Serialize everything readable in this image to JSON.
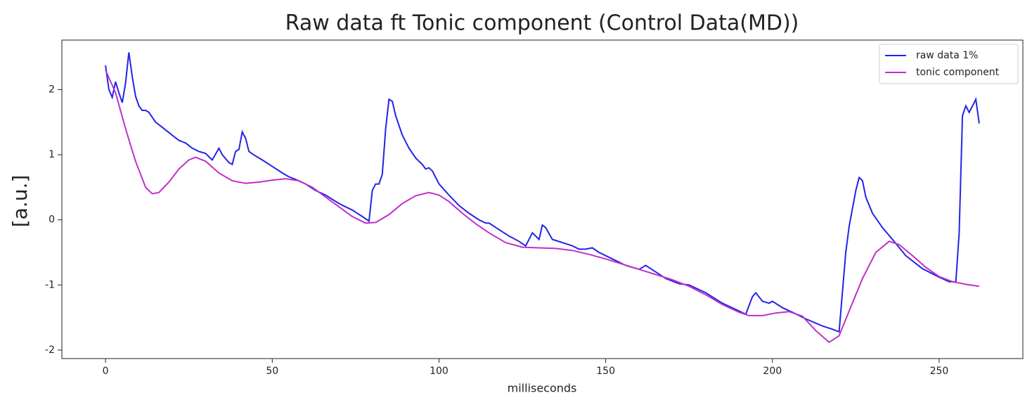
{
  "chart_data": {
    "type": "line",
    "title": "Raw data ft Tonic component (Control Data(MD))",
    "x_label": "milliseconds",
    "y_label": "[a.u.]",
    "xlim": [
      -13.1,
      275.1
    ],
    "xticks": [
      0,
      50,
      100,
      150,
      200,
      250
    ],
    "ylim": [
      -2.13,
      2.76
    ],
    "yticks": [
      -2,
      -1,
      0,
      1,
      2
    ],
    "legend": "upper right",
    "series": [
      {
        "name": "raw data 1%",
        "color": "#2323e8",
        "x": [
          0,
          1,
          2,
          3,
          4,
          5,
          6,
          7,
          8,
          9,
          10,
          11,
          12,
          13,
          15,
          17,
          20,
          22,
          23,
          24,
          26,
          28,
          30,
          32,
          34,
          35,
          37,
          38,
          39,
          40,
          41,
          42,
          43,
          45,
          47,
          50,
          53,
          55,
          57,
          60,
          63,
          66,
          70,
          74,
          77,
          79,
          80,
          81,
          82,
          83,
          84,
          85,
          86,
          87,
          89,
          91,
          93,
          95,
          96,
          97,
          98,
          100,
          103,
          106,
          109,
          112,
          114,
          115,
          118,
          121,
          124,
          126,
          128,
          129,
          130,
          131,
          132,
          134,
          137,
          140,
          142,
          144,
          146,
          148,
          152,
          156,
          160,
          162,
          165,
          168,
          172,
          175,
          180,
          185,
          190,
          192,
          194,
          195,
          197,
          199,
          200,
          203,
          206,
          210,
          215,
          218,
          220,
          222,
          223,
          225,
          226,
          227,
          228,
          230,
          233,
          236,
          240,
          245,
          250,
          253,
          255,
          256,
          257,
          258,
          259,
          260,
          261,
          262
        ],
        "values": [
          2.37,
          2.0,
          1.88,
          2.12,
          1.95,
          1.8,
          2.1,
          2.57,
          2.2,
          1.9,
          1.75,
          1.68,
          1.68,
          1.65,
          1.5,
          1.42,
          1.3,
          1.22,
          1.2,
          1.18,
          1.1,
          1.05,
          1.02,
          0.92,
          1.1,
          1.0,
          0.88,
          0.85,
          1.05,
          1.08,
          1.35,
          1.25,
          1.05,
          0.98,
          0.92,
          0.82,
          0.72,
          0.66,
          0.62,
          0.55,
          0.45,
          0.38,
          0.25,
          0.15,
          0.05,
          -0.02,
          0.45,
          0.55,
          0.55,
          0.7,
          1.4,
          1.85,
          1.82,
          1.6,
          1.3,
          1.1,
          0.95,
          0.85,
          0.78,
          0.8,
          0.75,
          0.55,
          0.38,
          0.22,
          0.1,
          0.0,
          -0.05,
          -0.05,
          -0.15,
          -0.25,
          -0.33,
          -0.4,
          -0.2,
          -0.25,
          -0.3,
          -0.08,
          -0.12,
          -0.3,
          -0.35,
          -0.4,
          -0.45,
          -0.45,
          -0.43,
          -0.5,
          -0.6,
          -0.7,
          -0.76,
          -0.7,
          -0.8,
          -0.9,
          -0.98,
          -1.0,
          -1.12,
          -1.28,
          -1.4,
          -1.45,
          -1.18,
          -1.12,
          -1.25,
          -1.28,
          -1.25,
          -1.35,
          -1.42,
          -1.52,
          -1.63,
          -1.68,
          -1.72,
          -0.5,
          -0.1,
          0.45,
          0.65,
          0.6,
          0.35,
          0.1,
          -0.12,
          -0.3,
          -0.55,
          -0.75,
          -0.88,
          -0.95,
          -0.95,
          -0.2,
          1.6,
          1.75,
          1.65,
          1.75,
          1.85,
          1.48
        ]
      },
      {
        "name": "tonic component",
        "color": "#c030c8",
        "x": [
          0,
          3,
          6,
          9,
          12,
          14,
          16,
          19,
          22,
          25,
          27,
          30,
          34,
          38,
          42,
          46,
          50,
          54,
          58,
          62,
          66,
          70,
          74,
          78,
          81,
          85,
          89,
          93,
          97,
          100,
          103,
          107,
          111,
          115,
          120,
          125,
          130,
          135,
          140,
          145,
          150,
          155,
          160,
          165,
          170,
          175,
          180,
          185,
          190,
          193,
          197,
          201,
          205,
          209,
          213,
          217,
          220,
          223,
          227,
          231,
          235,
          238,
          242,
          246,
          250,
          254,
          258,
          262
        ],
        "values": [
          2.3,
          1.95,
          1.4,
          0.9,
          0.5,
          0.4,
          0.42,
          0.58,
          0.78,
          0.92,
          0.96,
          0.9,
          0.72,
          0.6,
          0.56,
          0.58,
          0.61,
          0.63,
          0.6,
          0.5,
          0.35,
          0.2,
          0.05,
          -0.05,
          -0.04,
          0.08,
          0.25,
          0.37,
          0.42,
          0.38,
          0.28,
          0.1,
          -0.06,
          -0.2,
          -0.35,
          -0.42,
          -0.43,
          -0.44,
          -0.47,
          -0.53,
          -0.6,
          -0.68,
          -0.76,
          -0.84,
          -0.92,
          -1.02,
          -1.15,
          -1.3,
          -1.42,
          -1.47,
          -1.47,
          -1.43,
          -1.41,
          -1.48,
          -1.7,
          -1.88,
          -1.78,
          -1.4,
          -0.9,
          -0.5,
          -0.33,
          -0.38,
          -0.55,
          -0.73,
          -0.87,
          -0.95,
          -0.99,
          -1.02
        ]
      }
    ]
  }
}
